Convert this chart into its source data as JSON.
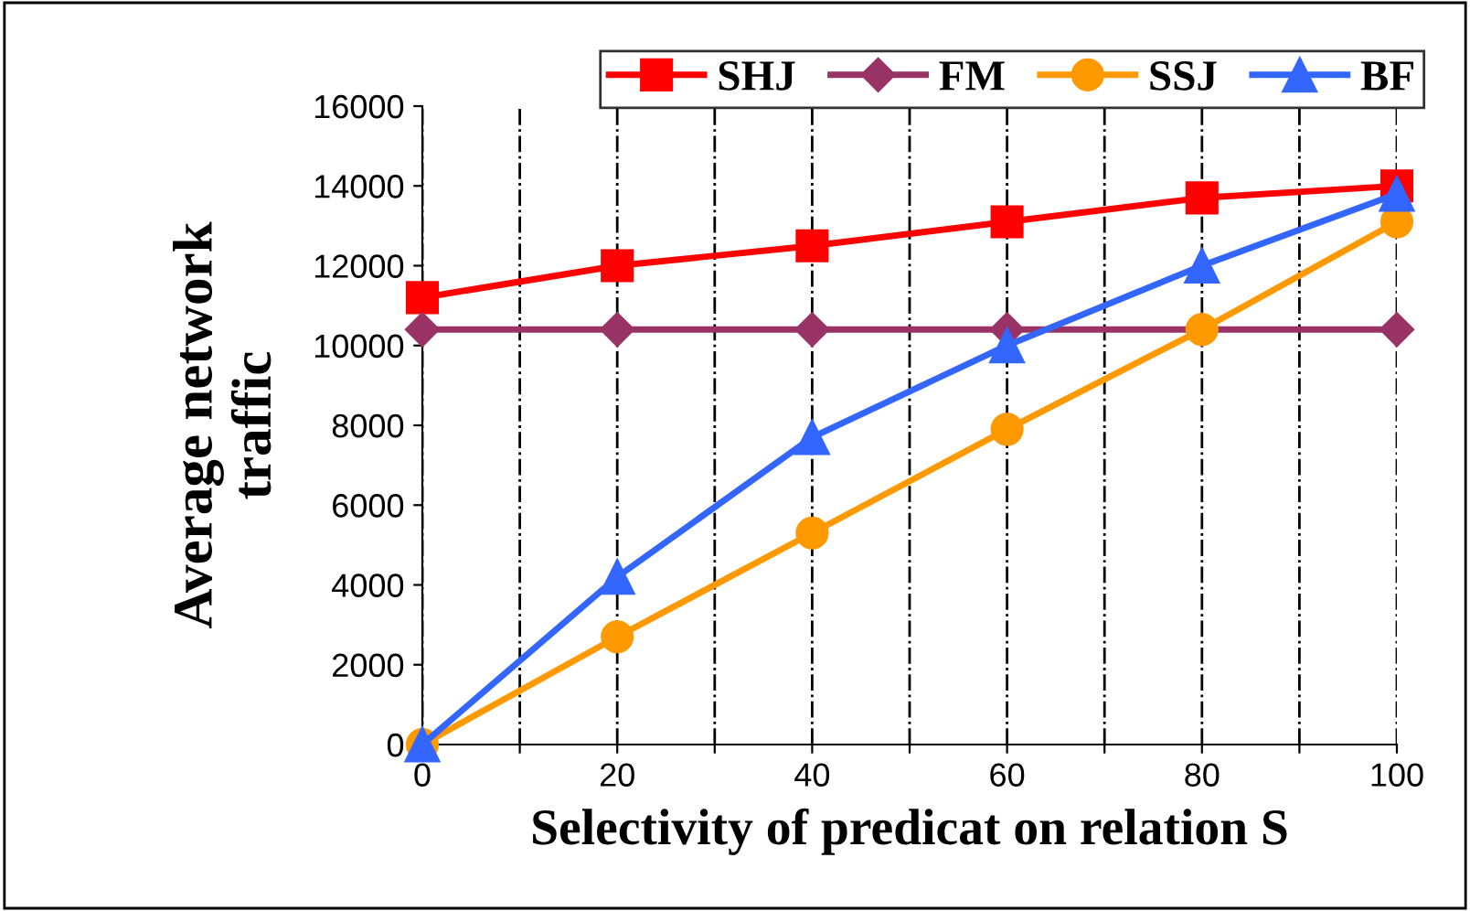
{
  "chart_data": {
    "type": "line",
    "xlabel": "Selectivity of predicat on relation S",
    "ylabel": "Average network\ntraffic",
    "x": [
      0,
      20,
      40,
      60,
      80,
      100
    ],
    "series": [
      {
        "name": "SHJ",
        "color": "#ff0000",
        "marker": "square",
        "values": [
          11200,
          12000,
          12500,
          13100,
          13700,
          14000
        ]
      },
      {
        "name": "FM",
        "color": "#993366",
        "marker": "diamond",
        "values": [
          10400,
          10400,
          10400,
          10400,
          10400,
          10400
        ]
      },
      {
        "name": "SSJ",
        "color": "#ff9900",
        "marker": "circle",
        "values": [
          0,
          2700,
          5300,
          7900,
          10400,
          13100
        ]
      },
      {
        "name": "BF",
        "color": "#3366ff",
        "marker": "triangle",
        "values": [
          0,
          4200,
          7700,
          10000,
          12000,
          13800
        ]
      }
    ],
    "xlim": [
      0,
      100
    ],
    "ylim": [
      0,
      16000
    ],
    "xticks": [
      0,
      {
        "value": 10,
        "label": null
      },
      20,
      {
        "value": 30,
        "label": null
      },
      40,
      {
        "value": 50,
        "label": null
      },
      60,
      {
        "value": 70,
        "label": null
      },
      80,
      {
        "value": 90,
        "label": null
      },
      100
    ],
    "yticks": [
      0,
      2000,
      4000,
      6000,
      8000,
      10000,
      12000,
      14000,
      16000
    ],
    "grid": "x",
    "legend": "top right"
  }
}
